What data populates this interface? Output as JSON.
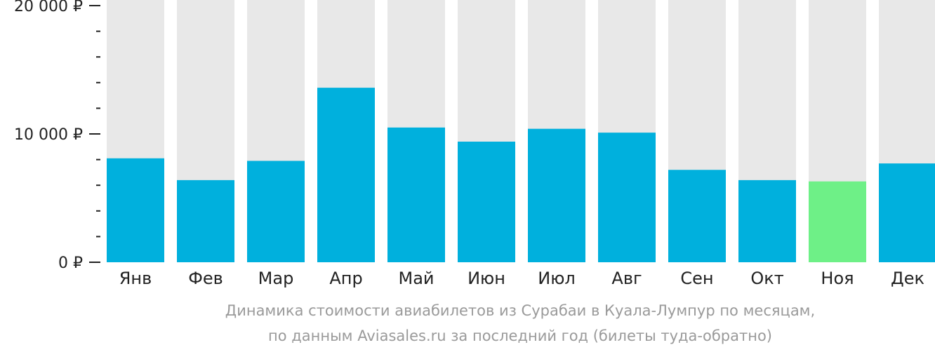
{
  "chart_data": {
    "type": "bar",
    "categories": [
      "Янв",
      "Фев",
      "Мар",
      "Апр",
      "Май",
      "Июн",
      "Июл",
      "Авг",
      "Сен",
      "Окт",
      "Ноя",
      "Дек"
    ],
    "values": [
      8100,
      6400,
      7900,
      13600,
      10500,
      9400,
      10400,
      10100,
      7200,
      6400,
      6300,
      7700
    ],
    "ylim": [
      0,
      20000
    ],
    "y_ticks": [
      {
        "value": 0,
        "label": "0 ₽"
      },
      {
        "value": 10000,
        "label": "10 000 ₽"
      },
      {
        "value": 20000,
        "label": "20 000 ₽"
      }
    ],
    "minor_tick_step": 2000,
    "highlight_index": 10,
    "colors": {
      "bar": "#00b0dd",
      "highlight": "#6ef087",
      "background_bar": "#e8e8e8",
      "axis": "#222222"
    }
  },
  "caption": {
    "line1": "Динамика стоимости авиабилетов из Сурабаи в Куала-Лумпур по месяцам,",
    "line2": "по данным Aviasales.ru за последний год (билеты туда-обратно)"
  }
}
